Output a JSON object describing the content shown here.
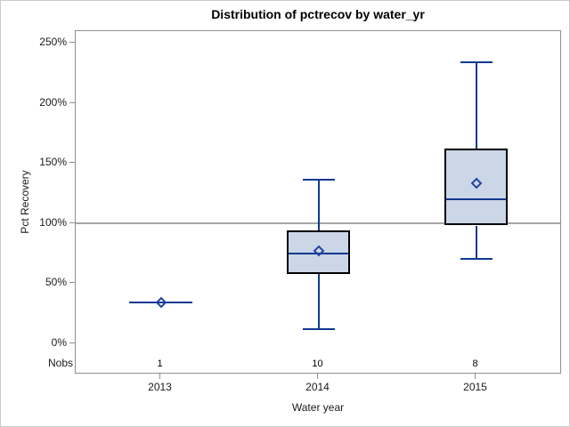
{
  "chart_data": {
    "type": "boxplot",
    "title": "Distribution of pctrecov by water_yr",
    "xlabel": "Water year",
    "ylabel": "Pct Recovery",
    "nobs_label": "Nobs",
    "categories": [
      "2013",
      "2014",
      "2015"
    ],
    "nobs": [
      "1",
      "10",
      "8"
    ],
    "y_tick_values": [
      0,
      50,
      100,
      150,
      200,
      250
    ],
    "y_tick_labels": [
      "0%",
      "50%",
      "100%",
      "150%",
      "200%",
      "250%"
    ],
    "ylim": [
      0,
      250
    ],
    "unit": "percent",
    "grid": false,
    "legend": "none",
    "reference_line": 100,
    "groups": [
      {
        "category": "2013",
        "n": 1,
        "min": 34,
        "q1": 34,
        "median": 34,
        "q3": 34,
        "max": 34,
        "mean": 34
      },
      {
        "category": "2014",
        "n": 10,
        "min": 12,
        "q1": 58,
        "median": 75,
        "q3": 94,
        "max": 136,
        "mean": 77
      },
      {
        "category": "2015",
        "n": 8,
        "min": 70,
        "q1": 98,
        "median": 120,
        "q3": 162,
        "max": 234,
        "mean": 133
      }
    ],
    "colors": {
      "box_fill": "#CBD6E7",
      "box_border": "#000000",
      "whisker": "#10398F",
      "median_line": "#10398F",
      "mean_marker": "#2246A0",
      "reference_line": "#A6A6A6",
      "plot_border": "#8F8F8F",
      "figure_border": "#C9CBD3",
      "background": "#FFFFFF",
      "text": "#1A1A1A"
    }
  }
}
